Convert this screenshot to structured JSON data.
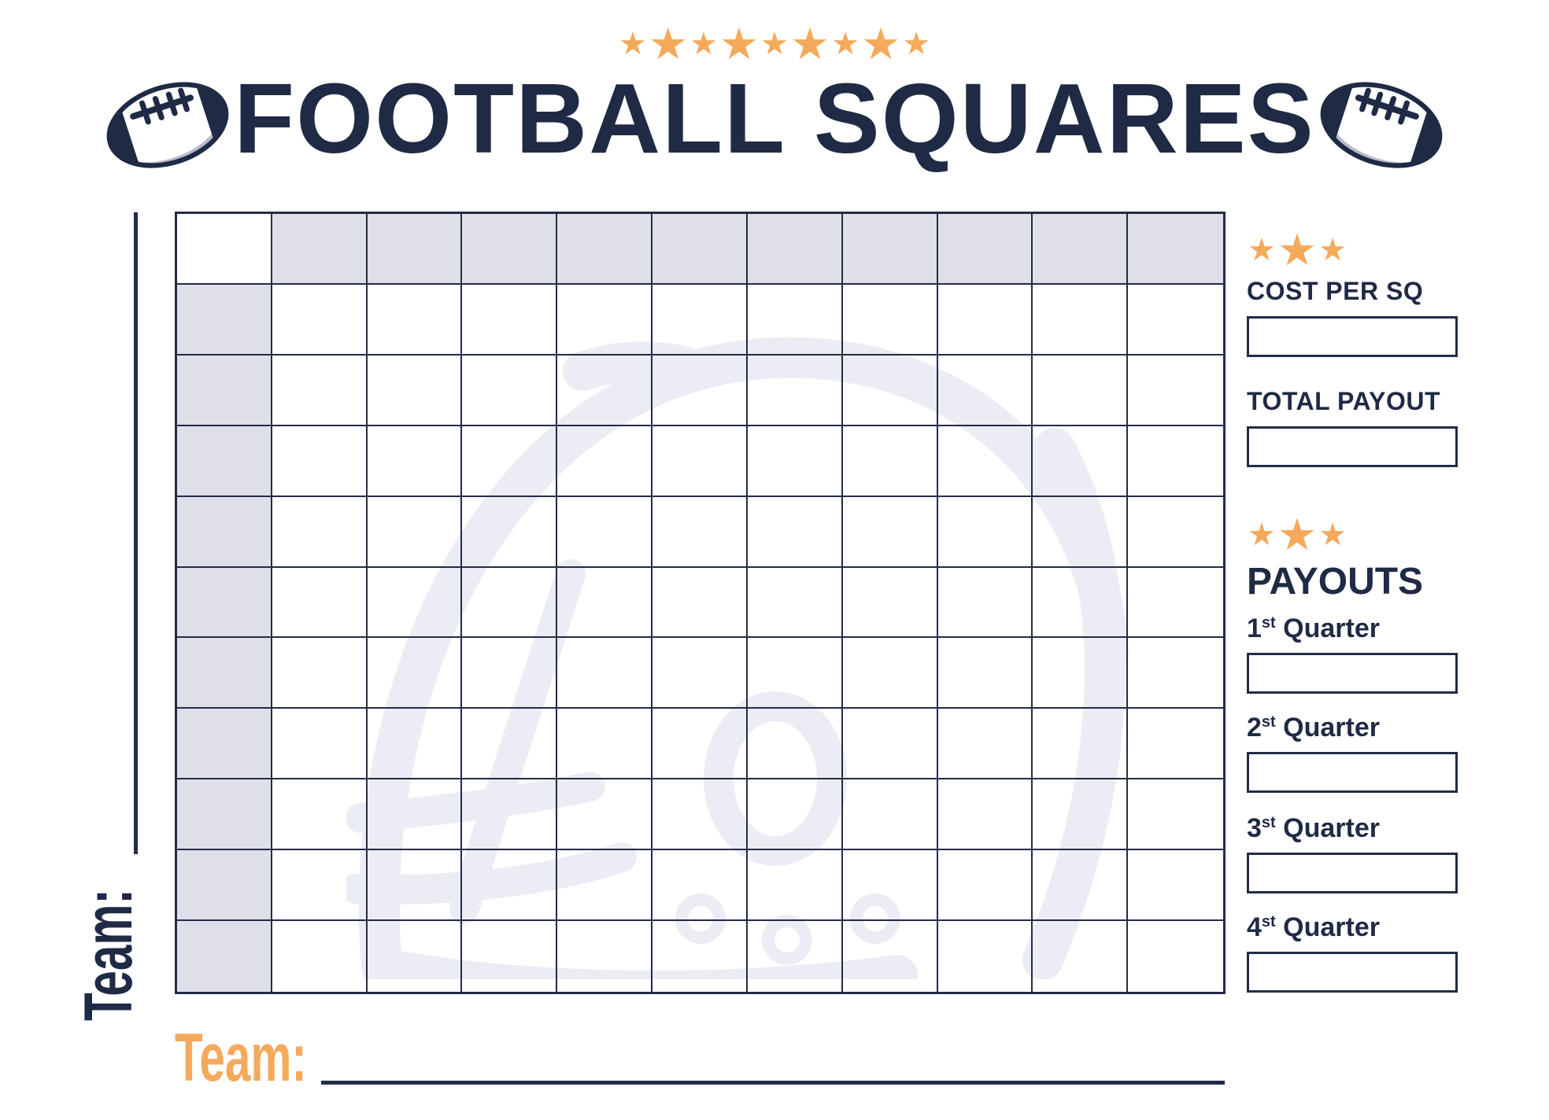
{
  "header": {
    "title": "FOOTBALL SQUARES",
    "top_stars_count": 9
  },
  "left_panel": {
    "team_label": "Team:"
  },
  "bottom": {
    "team_label": "Team:"
  },
  "grid": {
    "rows": 11,
    "cols": 11
  },
  "sidebar": {
    "stars_per_group": 3,
    "cost_per_sq_label": "COST PER SQ",
    "cost_per_sq_value": "",
    "total_payout_label": "TOTAL PAYOUT",
    "total_payout_value": "",
    "payouts_heading": "PAYOUTS",
    "quarters": [
      {
        "number": "1",
        "suffix": "st",
        "word": "Quarter",
        "value": ""
      },
      {
        "number": "2",
        "suffix": "st",
        "word": "Quarter",
        "value": ""
      },
      {
        "number": "3",
        "suffix": "st",
        "word": "Quarter",
        "value": ""
      },
      {
        "number": "4",
        "suffix": "st",
        "word": "Quarter",
        "value": ""
      }
    ]
  },
  "colors": {
    "navy": "#1F2A45",
    "grid_line": "#232C47",
    "orange": "#F4A95B",
    "header_cell_gray": "#DFDFE9",
    "watermark_gray": "#ECEDF4",
    "football_shade": "#B9BACD"
  }
}
